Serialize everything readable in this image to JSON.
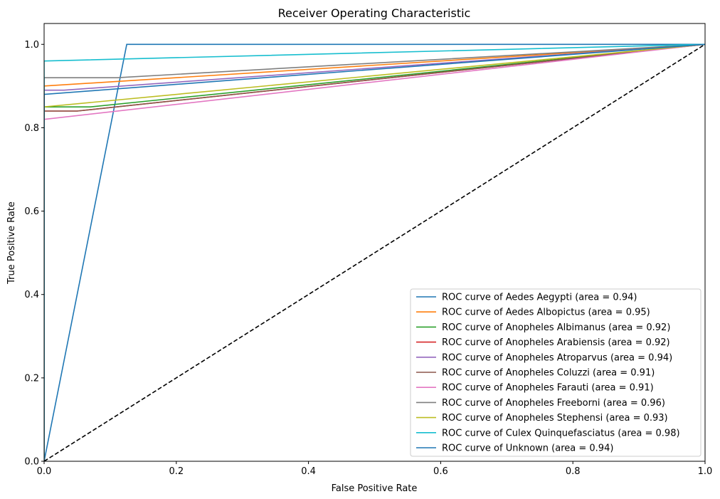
{
  "chart_data": {
    "type": "line",
    "title": "Receiver Operating Characteristic",
    "xlabel": "False Positive Rate",
    "ylabel": "True Positive Rate",
    "xlim": [
      0,
      1
    ],
    "ylim": [
      0,
      1.05
    ],
    "xticks": [
      "0.0",
      "0.2",
      "0.4",
      "0.6",
      "0.8",
      "1.0"
    ],
    "yticks": [
      "0.0",
      "0.2",
      "0.4",
      "0.6",
      "0.8",
      "1.0"
    ],
    "grid": false,
    "legend_position": "lower-right",
    "diagonal": {
      "x": [
        0,
        1
      ],
      "y": [
        0,
        1
      ],
      "color": "#000000",
      "style": "dashed"
    },
    "series": [
      {
        "name": "ROC curve of Aedes Aegypti (area = 0.94)",
        "color": "#1f77b4",
        "x": [
          0,
          0.125,
          1
        ],
        "y": [
          0,
          1,
          1
        ]
      },
      {
        "name": "ROC curve of Aedes Albopictus (area = 0.95)",
        "color": "#ff7f0e",
        "x": [
          0,
          0,
          1
        ],
        "y": [
          0,
          0.9,
          1
        ]
      },
      {
        "name": "ROC curve of Anopheles Albimanus (area = 0.92)",
        "color": "#2ca02c",
        "x": [
          0,
          0,
          0.07,
          1
        ],
        "y": [
          0,
          0.85,
          0.85,
          1
        ]
      },
      {
        "name": "ROC curve of Anopheles Arabiensis (area = 0.92)",
        "color": "#d62728",
        "x": [
          0,
          0,
          0.05,
          1
        ],
        "y": [
          0,
          0.84,
          0.84,
          1
        ]
      },
      {
        "name": "ROC curve of Anopheles Atroparvus (area = 0.94)",
        "color": "#9467bd",
        "x": [
          0,
          0,
          0.03,
          1
        ],
        "y": [
          0,
          0.89,
          0.89,
          1
        ]
      },
      {
        "name": "ROC curve of Anopheles Coluzzi (area = 0.91)",
        "color": "#8c564b",
        "x": [
          0,
          0,
          0.05,
          1
        ],
        "y": [
          0,
          0.84,
          0.84,
          1
        ]
      },
      {
        "name": "ROC curve of Anopheles Farauti (area = 0.91)",
        "color": "#e377c2",
        "x": [
          0,
          0,
          1
        ],
        "y": [
          0,
          0.82,
          1
        ]
      },
      {
        "name": "ROC curve of Anopheles Freeborni (area = 0.96)",
        "color": "#7f7f7f",
        "x": [
          0,
          0,
          0.11,
          1
        ],
        "y": [
          0,
          0.92,
          0.92,
          1
        ]
      },
      {
        "name": "ROC curve of Anopheles Stephensi (area = 0.93)",
        "color": "#bcbd22",
        "x": [
          0,
          0,
          1
        ],
        "y": [
          0,
          0.85,
          1
        ]
      },
      {
        "name": "ROC curve of Culex Quinquefasciatus (area = 0.98)",
        "color": "#17becf",
        "x": [
          0,
          0,
          1
        ],
        "y": [
          0,
          0.96,
          1
        ]
      },
      {
        "name": "ROC curve of Unknown (area = 0.94)",
        "color": "#1f77b4",
        "x": [
          0,
          0,
          1
        ],
        "y": [
          0,
          0.88,
          1
        ]
      }
    ]
  }
}
